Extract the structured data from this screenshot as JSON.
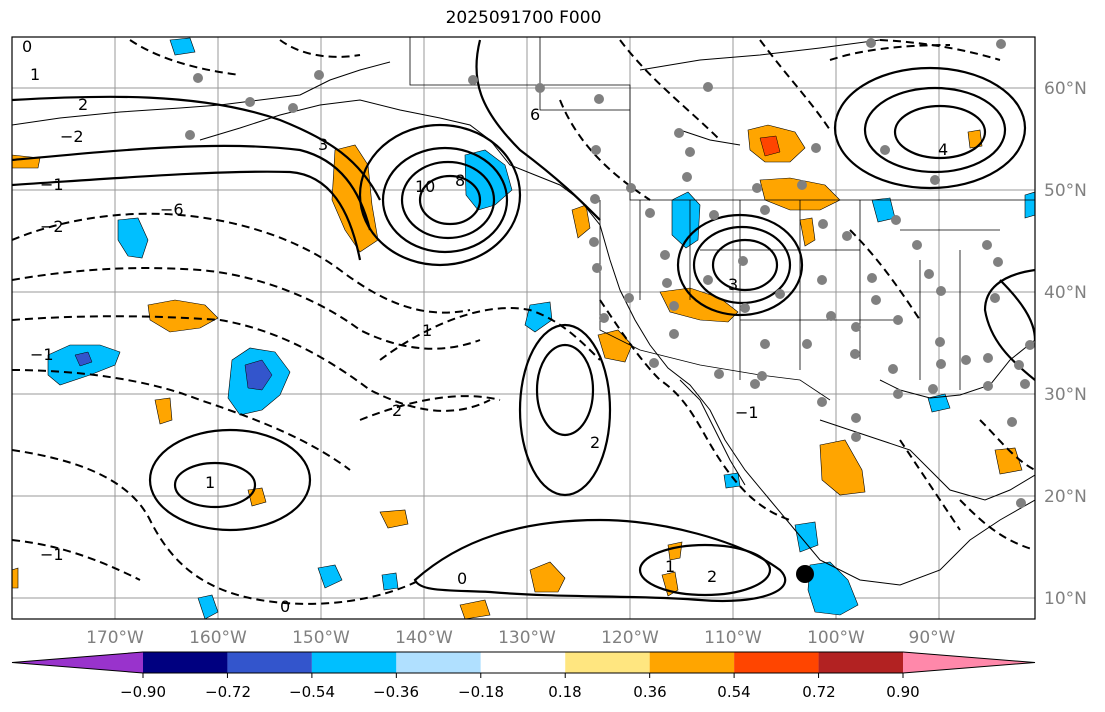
{
  "title": "2025091700 F000",
  "lon_labels": [
    "170°W",
    "160°W",
    "150°W",
    "140°W",
    "130°W",
    "120°W",
    "110°W",
    "100°W",
    "90°W"
  ],
  "lat_labels": [
    "60°N",
    "50°N",
    "40°N",
    "30°N",
    "20°N",
    "10°N"
  ],
  "colorbar": {
    "colors": [
      "#9933cc",
      "#000080",
      "#3355cc",
      "#00bfff",
      "#b0e0ff",
      "#ffffff",
      "#ffe680",
      "#ffa500",
      "#ff4500",
      "#b22222",
      "#ff88aa"
    ],
    "ticks": [
      "−0.90",
      "−0.72",
      "−0.54",
      "−0.36",
      "−0.18",
      "0.18",
      "0.36",
      "0.54",
      "0.72",
      "0.90"
    ]
  },
  "contour_labels": [
    "0",
    "1",
    "2",
    "−2",
    "−1",
    "3",
    "4",
    "10",
    "8",
    "6",
    "−6",
    "1",
    "2",
    "−1",
    "0",
    "1",
    "2",
    "0",
    "−2",
    "−1",
    "−1",
    "1",
    "3",
    "2"
  ],
  "colors": {
    "positive": "#ffa500",
    "negative": "#00bfff",
    "stations": "#808080"
  }
}
